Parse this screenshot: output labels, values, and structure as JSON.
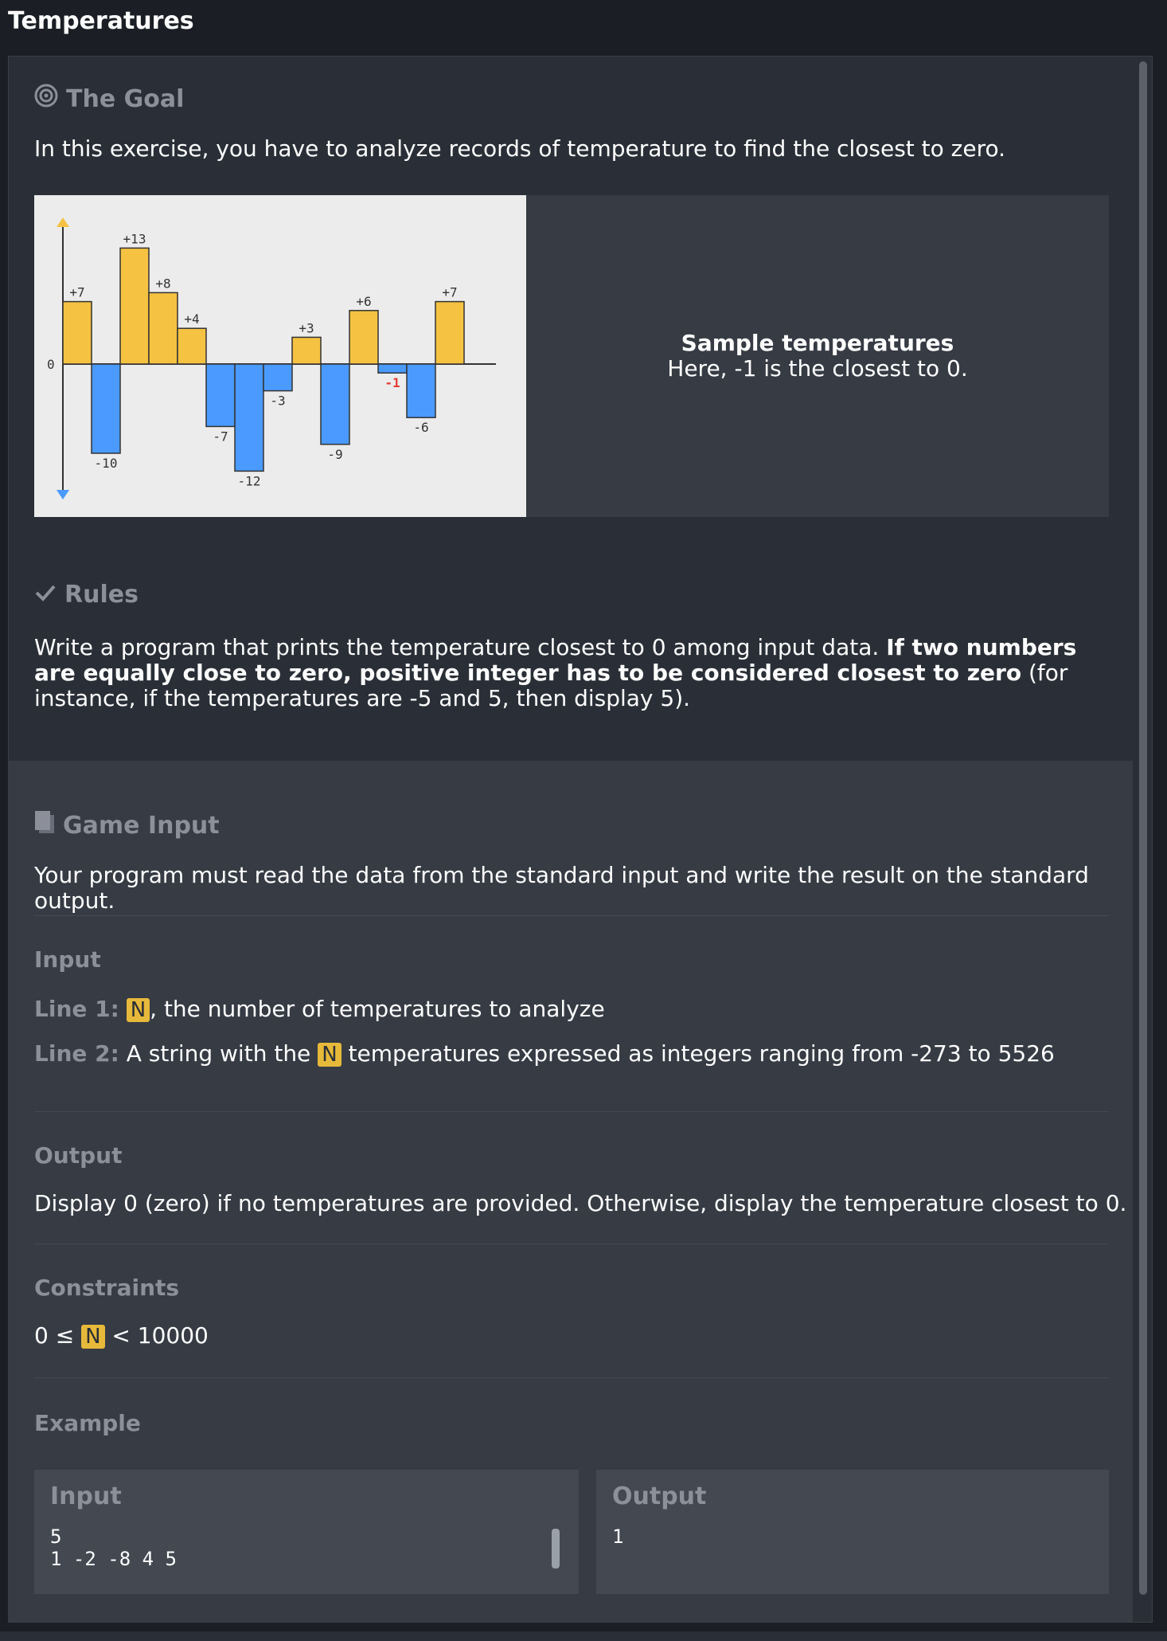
{
  "window": {
    "title": "Temperatures"
  },
  "goal": {
    "heading": "The Goal",
    "intro": "In this exercise, you have to analyze records of temperature to find the closest to zero.",
    "graphic": {
      "zero_label": "0",
      "bars": [
        {
          "label": "+7"
        },
        {
          "label": "-10"
        },
        {
          "label": "+13"
        },
        {
          "label": "+8"
        },
        {
          "label": "+4"
        },
        {
          "label": "-7"
        },
        {
          "label": "-12"
        },
        {
          "label": "-3"
        },
        {
          "label": "+3"
        },
        {
          "label": "-9"
        },
        {
          "label": "+6"
        },
        {
          "label": "-1"
        },
        {
          "label": "-6"
        },
        {
          "label": "+7"
        }
      ]
    },
    "caption_title": "Sample temperatures",
    "caption_text": "Here, -1 is the closest to 0."
  },
  "rules": {
    "heading": "Rules",
    "text_before": "Write a program that prints the temperature closest to 0 among input data. ",
    "text_bold": "If two numbers are equally close to zero, positive integer has to be considered closest to zero",
    "text_after": " (for instance, if the temperatures are -5 and 5, then display 5)."
  },
  "game_input": {
    "heading": "Game Input",
    "intro": "Your program must read the data from the standard input and write the result on the standard output.",
    "input_heading": "Input",
    "line1_label": "Line 1:",
    "line1_var": "N",
    "line1_text": ", the number of temperatures to analyze",
    "line2_label": "Line 2:",
    "line2_text_before": " A string with the ",
    "line2_var": "N",
    "line2_text_after": " temperatures expressed as integers ranging from -273 to 5526",
    "output_heading": "Output",
    "output_text": "Display 0 (zero) if no temperatures are provided. Otherwise, display the temperature closest to 0.",
    "constraints_heading": "Constraints",
    "constraint_before": "0 ≤ ",
    "constraint_var": "N",
    "constraint_after": " < 10000",
    "example_heading": "Example",
    "example_input_label": "Input",
    "example_input_line1": "5",
    "example_input_line2": "1 -2 -8 4 5",
    "example_output_label": "Output",
    "example_output_value": "1"
  },
  "colors": {
    "positive_bar": "#f5c242",
    "negative_bar": "#4a9aff",
    "closest_label": "#e53935",
    "variable_badge": "#e7b93a"
  }
}
